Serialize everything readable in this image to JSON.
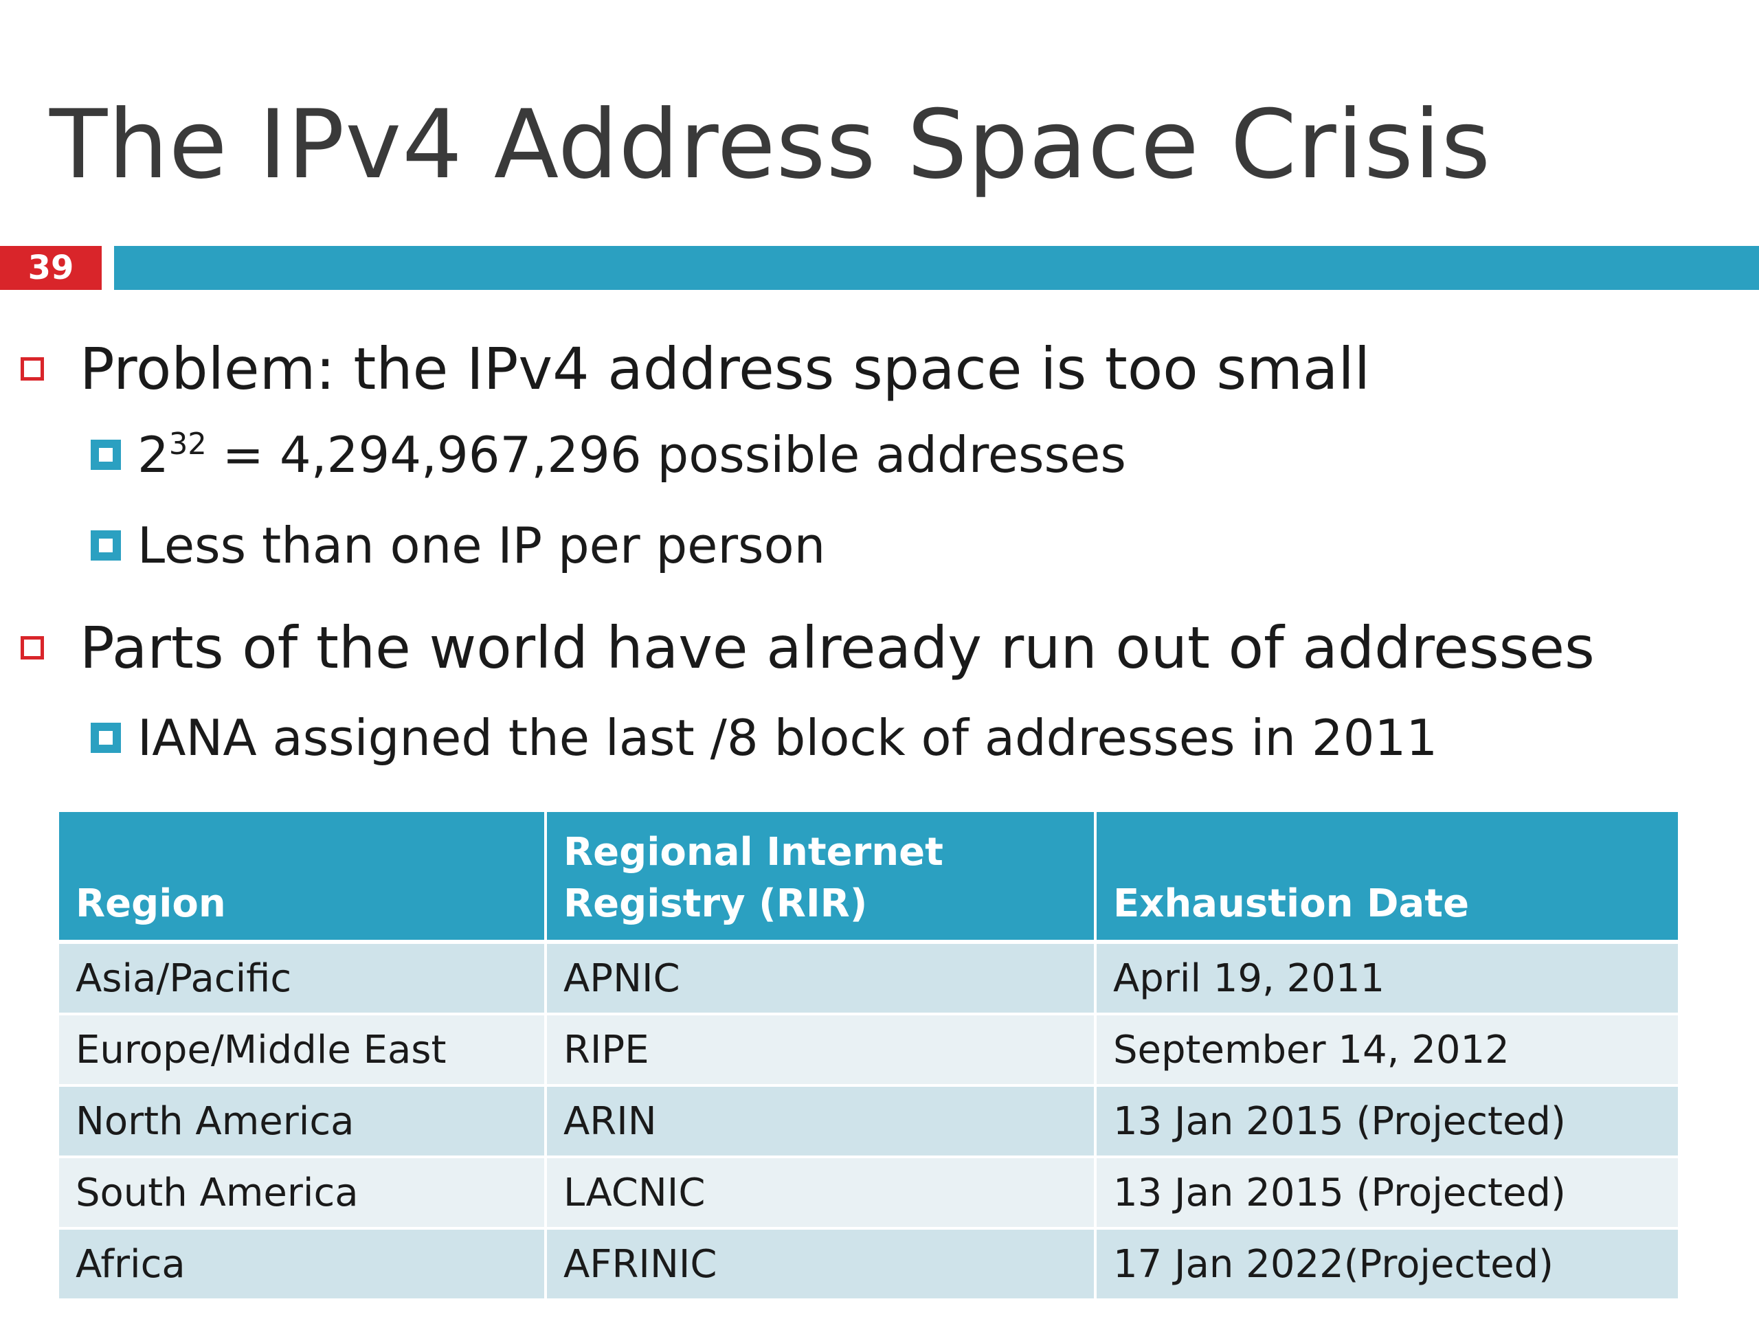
{
  "slide": {
    "title": "The IPv4 Address Space Crisis",
    "number": "39",
    "accent_color": "#2ba0c1",
    "number_badge_color": "#d9252a"
  },
  "bullets": [
    {
      "text": "Problem: the IPv4 address space is too small",
      "sub": [
        {
          "base": "2",
          "sup": "32",
          "rest": " = 4,294,967,296 possible addresses"
        },
        {
          "text": "Less than one IP per person"
        }
      ]
    },
    {
      "text": "Parts of the world have already run out of addresses",
      "sub": [
        {
          "text": "IANA assigned the last /8 block of addresses in 2011"
        }
      ]
    }
  ],
  "table": {
    "headers": [
      "Region",
      "Regional  Internet Registry (RIR)",
      "Exhaustion Date"
    ],
    "rows": [
      [
        "Asia/Pacific",
        "APNIC",
        "April 19, 2011"
      ],
      [
        "Europe/Middle East",
        "RIPE",
        "September 14, 2012"
      ],
      [
        "North America",
        "ARIN",
        "13 Jan 2015 (Projected)"
      ],
      [
        "South America",
        "LACNIC",
        "13 Jan 2015 (Projected)"
      ],
      [
        "Africa",
        "AFRINIC",
        "17 Jan 2022(Projected)"
      ]
    ]
  }
}
